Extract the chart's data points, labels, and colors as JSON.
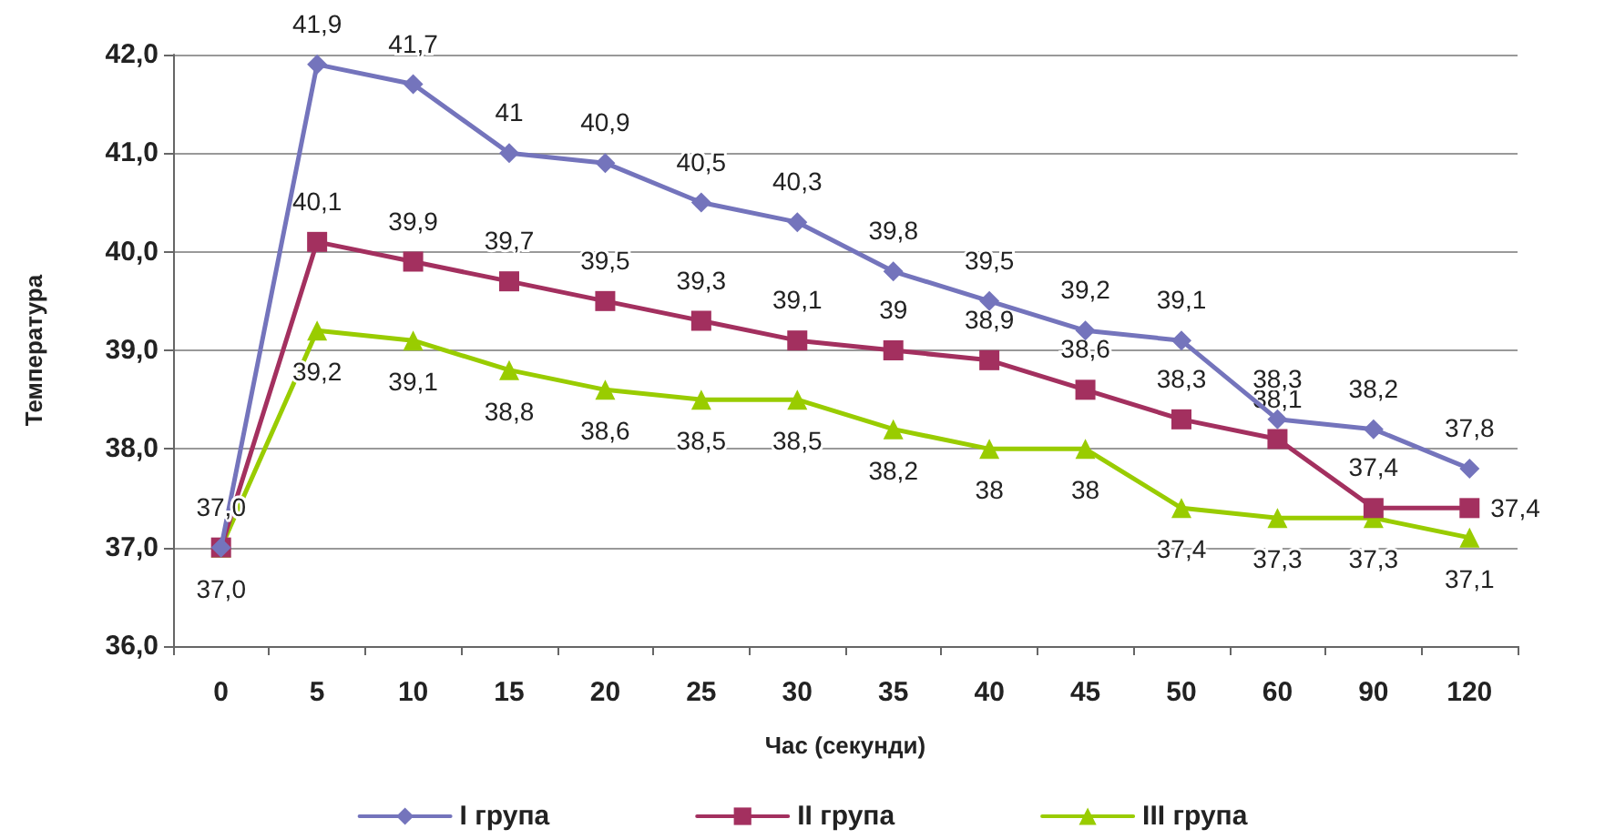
{
  "chart_data": {
    "type": "line",
    "xlabel": "Час (секунди)",
    "ylabel": "Температура",
    "categories": [
      "0",
      "5",
      "10",
      "15",
      "20",
      "25",
      "30",
      "35",
      "40",
      "45",
      "50",
      "60",
      "90",
      "120"
    ],
    "series": [
      {
        "name": "I група",
        "color": "#7474bc",
        "marker": "diamond",
        "values": [
          37.0,
          41.9,
          41.7,
          41.0,
          40.9,
          40.5,
          40.3,
          39.8,
          39.5,
          39.2,
          39.1,
          38.3,
          38.2,
          37.8
        ],
        "value_labels": [
          "37,0",
          "41,9",
          "41,7",
          "41",
          "40,9",
          "40,5",
          "40,3",
          "39,8",
          "39,5",
          "39,2",
          "39,1",
          "38,3",
          "38,2",
          "37,8"
        ]
      },
      {
        "name": "II група",
        "color": "#a3305f",
        "marker": "square",
        "values": [
          37.0,
          40.1,
          39.9,
          39.7,
          39.5,
          39.3,
          39.1,
          39.0,
          38.9,
          38.6,
          38.3,
          38.1,
          37.4,
          37.4
        ],
        "value_labels": [
          null,
          "40,1",
          "39,9",
          "39,7",
          "39,5",
          "39,3",
          "39,1",
          "39",
          "38,9",
          "38,6",
          "38,3",
          "38,1",
          "37,4",
          "37,4"
        ]
      },
      {
        "name": "III група",
        "color": "#99cc00",
        "marker": "triangle",
        "values": [
          37.0,
          39.2,
          39.1,
          38.8,
          38.6,
          38.5,
          38.5,
          38.2,
          38.0,
          38.0,
          37.4,
          37.3,
          37.3,
          37.1
        ],
        "value_labels": [
          "37,0",
          "39,2",
          "39,1",
          "38,8",
          "38,6",
          "38,5",
          "38,5",
          "38,2",
          "38",
          "38",
          "37,4",
          "37,3",
          "37,3",
          "37,1"
        ]
      }
    ],
    "ylim": [
      36,
      42
    ],
    "yticks": [
      {
        "value": 36,
        "label": "36,0"
      },
      {
        "value": 37,
        "label": "37,0"
      },
      {
        "value": 38,
        "label": "38,0"
      },
      {
        "value": 39,
        "label": "39,0"
      },
      {
        "value": 40,
        "label": "40,0"
      },
      {
        "value": 41,
        "label": "41,0"
      },
      {
        "value": 42,
        "label": "42,0"
      }
    ],
    "grid": "y",
    "legend": "bottom",
    "line_style": "solid"
  }
}
